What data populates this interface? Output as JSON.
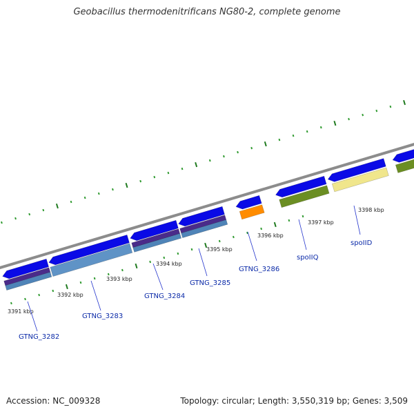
{
  "title": "Geobacillus thermodenitrificans NG80-2, complete genome",
  "footer": {
    "accession": "Accession: NC_009328",
    "summary": "Topology: circular; Length: 3,550,319 bp; Genes: 3,509"
  },
  "colors": {
    "backbone": "#8c8c8c",
    "tick_minor": "#2f9a2f",
    "tick_major": "#1f7a1f",
    "gene_blue": "#0a0ae6",
    "gene_label": "#0b2aa8",
    "leader_line": "#2233cc"
  },
  "kbp_labels": [
    "3391 kbp",
    "3392 kbp",
    "3393 kbp",
    "3394 kbp",
    "3395 kbp",
    "3396 kbp",
    "3397 kbp",
    "3398 kbp"
  ],
  "gene_labels": [
    "GTNG_3282",
    "GTNG_3283",
    "GTNG_3284",
    "GTNG_3285",
    "GTNG_3286",
    "spoIIQ",
    "spoIID"
  ]
}
